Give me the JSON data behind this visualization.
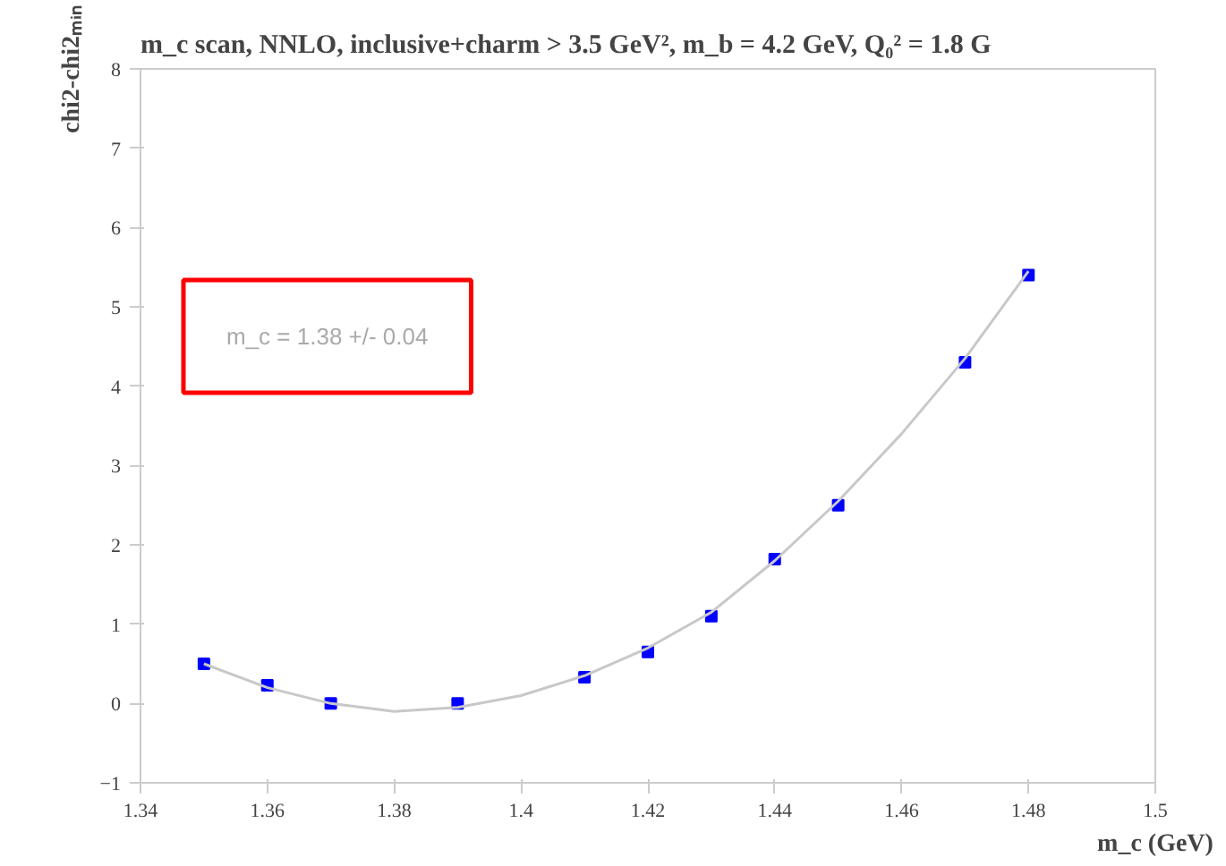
{
  "chart_data": {
    "type": "scatter",
    "title": "m_c scan, NNLO, inclusive+charm > 3.5 GeV², m_b = 4.2 GeV, Q₀² = 1.8 G",
    "xlabel": "m_c (GeV)",
    "ylabel": "chi2-chi2ₘᵢₙ",
    "x": [
      1.35,
      1.36,
      1.37,
      1.39,
      1.41,
      1.42,
      1.43,
      1.44,
      1.45,
      1.47,
      1.48
    ],
    "series": [
      {
        "color": "#0000ff",
        "marker": "square",
        "values": [
          0.5,
          0.23,
          0.0,
          0.0,
          0.33,
          0.65,
          1.1,
          1.82,
          2.5,
          4.3,
          5.4
        ]
      },
      {
        "type": "line",
        "color": "#c8c8c8",
        "x": [
          1.35,
          1.36,
          1.37,
          1.38,
          1.39,
          1.4,
          1.41,
          1.42,
          1.43,
          1.44,
          1.45,
          1.46,
          1.47,
          1.48
        ],
        "values": [
          0.5,
          0.2,
          0.0,
          -0.1,
          -0.05,
          0.1,
          0.35,
          0.7,
          1.15,
          1.8,
          2.55,
          3.4,
          4.35,
          5.45
        ]
      }
    ],
    "annotations": [
      "m_c = 1.38 +/- 0.04"
    ],
    "xlim": [
      1.34,
      1.5
    ],
    "xticks": [
      1.34,
      1.36,
      1.38,
      {
        "value": 1.4,
        "label": "1.4"
      },
      1.42,
      1.44,
      1.46,
      1.48,
      {
        "value": 1.5,
        "label": "1.5"
      }
    ],
    "ylim": [
      -1,
      8
    ],
    "yticks": [
      -1,
      0,
      1,
      2,
      3,
      4,
      5,
      6,
      7,
      8
    ],
    "grid": false
  }
}
